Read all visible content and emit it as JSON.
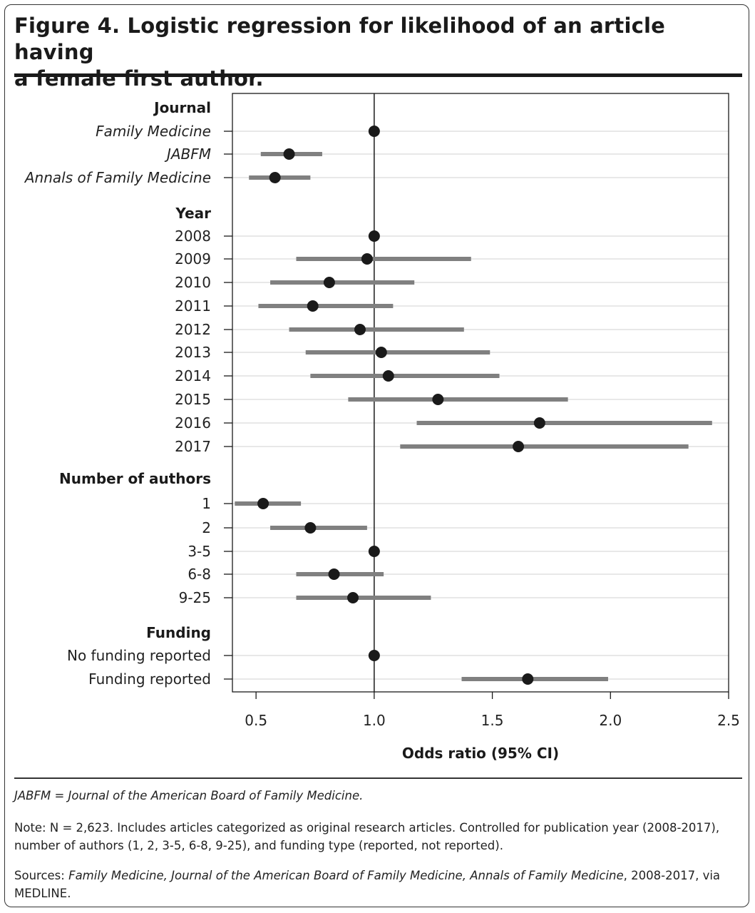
{
  "figure": {
    "title_line1": "Figure 4. Logistic regression for likelihood of an article having",
    "title_line2": "a female first author."
  },
  "chart_data": {
    "type": "scatter",
    "subtype": "forest-plot",
    "xlabel": "Odds ratio (95% CI)",
    "xlim": [
      0.4,
      2.5
    ],
    "xticks": [
      0.5,
      1.0,
      1.5,
      2.0,
      2.5
    ],
    "xtick_labels": [
      "0.5",
      "1.0",
      "1.5",
      "2.0",
      "2.5"
    ],
    "reference_line": 1.0,
    "grid": "horizontal",
    "colors": {
      "point": "#1a1a1a",
      "ci_bar": "#808080",
      "grid": "#d0d0d0",
      "ref_line": "#1a1a1a"
    },
    "groups": [
      {
        "header": "Journal",
        "rows": [
          {
            "label": "Family Medicine",
            "italic": true,
            "or": 1.0,
            "lo": null,
            "hi": null
          },
          {
            "label": "JABFM",
            "italic": true,
            "or": 0.64,
            "lo": 0.52,
            "hi": 0.78
          },
          {
            "label": "Annals of Family Medicine",
            "italic": true,
            "or": 0.58,
            "lo": 0.47,
            "hi": 0.73
          }
        ]
      },
      {
        "header": "Year",
        "rows": [
          {
            "label": "2008",
            "or": 1.0,
            "lo": null,
            "hi": null
          },
          {
            "label": "2009",
            "or": 0.97,
            "lo": 0.67,
            "hi": 1.41
          },
          {
            "label": "2010",
            "or": 0.81,
            "lo": 0.56,
            "hi": 1.17
          },
          {
            "label": "2011",
            "or": 0.74,
            "lo": 0.51,
            "hi": 1.08
          },
          {
            "label": "2012",
            "or": 0.94,
            "lo": 0.64,
            "hi": 1.38
          },
          {
            "label": "2013",
            "or": 1.03,
            "lo": 0.71,
            "hi": 1.49
          },
          {
            "label": "2014",
            "or": 1.06,
            "lo": 0.73,
            "hi": 1.53
          },
          {
            "label": "2015",
            "or": 1.27,
            "lo": 0.89,
            "hi": 1.82
          },
          {
            "label": "2016",
            "or": 1.7,
            "lo": 1.18,
            "hi": 2.43
          },
          {
            "label": "2017",
            "or": 1.61,
            "lo": 1.11,
            "hi": 2.33
          }
        ]
      },
      {
        "header": "Number of authors",
        "rows": [
          {
            "label": "1",
            "or": 0.53,
            "lo": 0.41,
            "hi": 0.69
          },
          {
            "label": "2",
            "or": 0.73,
            "lo": 0.56,
            "hi": 0.97
          },
          {
            "label": "3-5",
            "or": 1.0,
            "lo": null,
            "hi": null
          },
          {
            "label": "6-8",
            "or": 0.83,
            "lo": 0.67,
            "hi": 1.04
          },
          {
            "label": "9-25",
            "or": 0.91,
            "lo": 0.67,
            "hi": 1.24
          }
        ]
      },
      {
        "header": "Funding",
        "rows": [
          {
            "label": "No funding reported",
            "or": 1.0,
            "lo": null,
            "hi": null
          },
          {
            "label": "Funding reported",
            "or": 1.65,
            "lo": 1.37,
            "hi": 1.99
          }
        ]
      }
    ]
  },
  "footnotes": {
    "abbrev_term": "JABFM",
    "abbrev_def": " = Journal of the American Board of Family Medicine.",
    "note": "Note: N = 2,623. Includes articles categorized as original research articles. Controlled for publication year (2008-2017), number of authors (1, 2, 3-5, 6-8, 9-25), and funding type (reported, not reported).",
    "sources_prefix": "Sources: ",
    "sources_italic": "Family Medicine, Journal of the American Board of Family Medicine, Annals of Family Medicine",
    "sources_suffix": ", 2008-2017, via MEDLINE."
  }
}
